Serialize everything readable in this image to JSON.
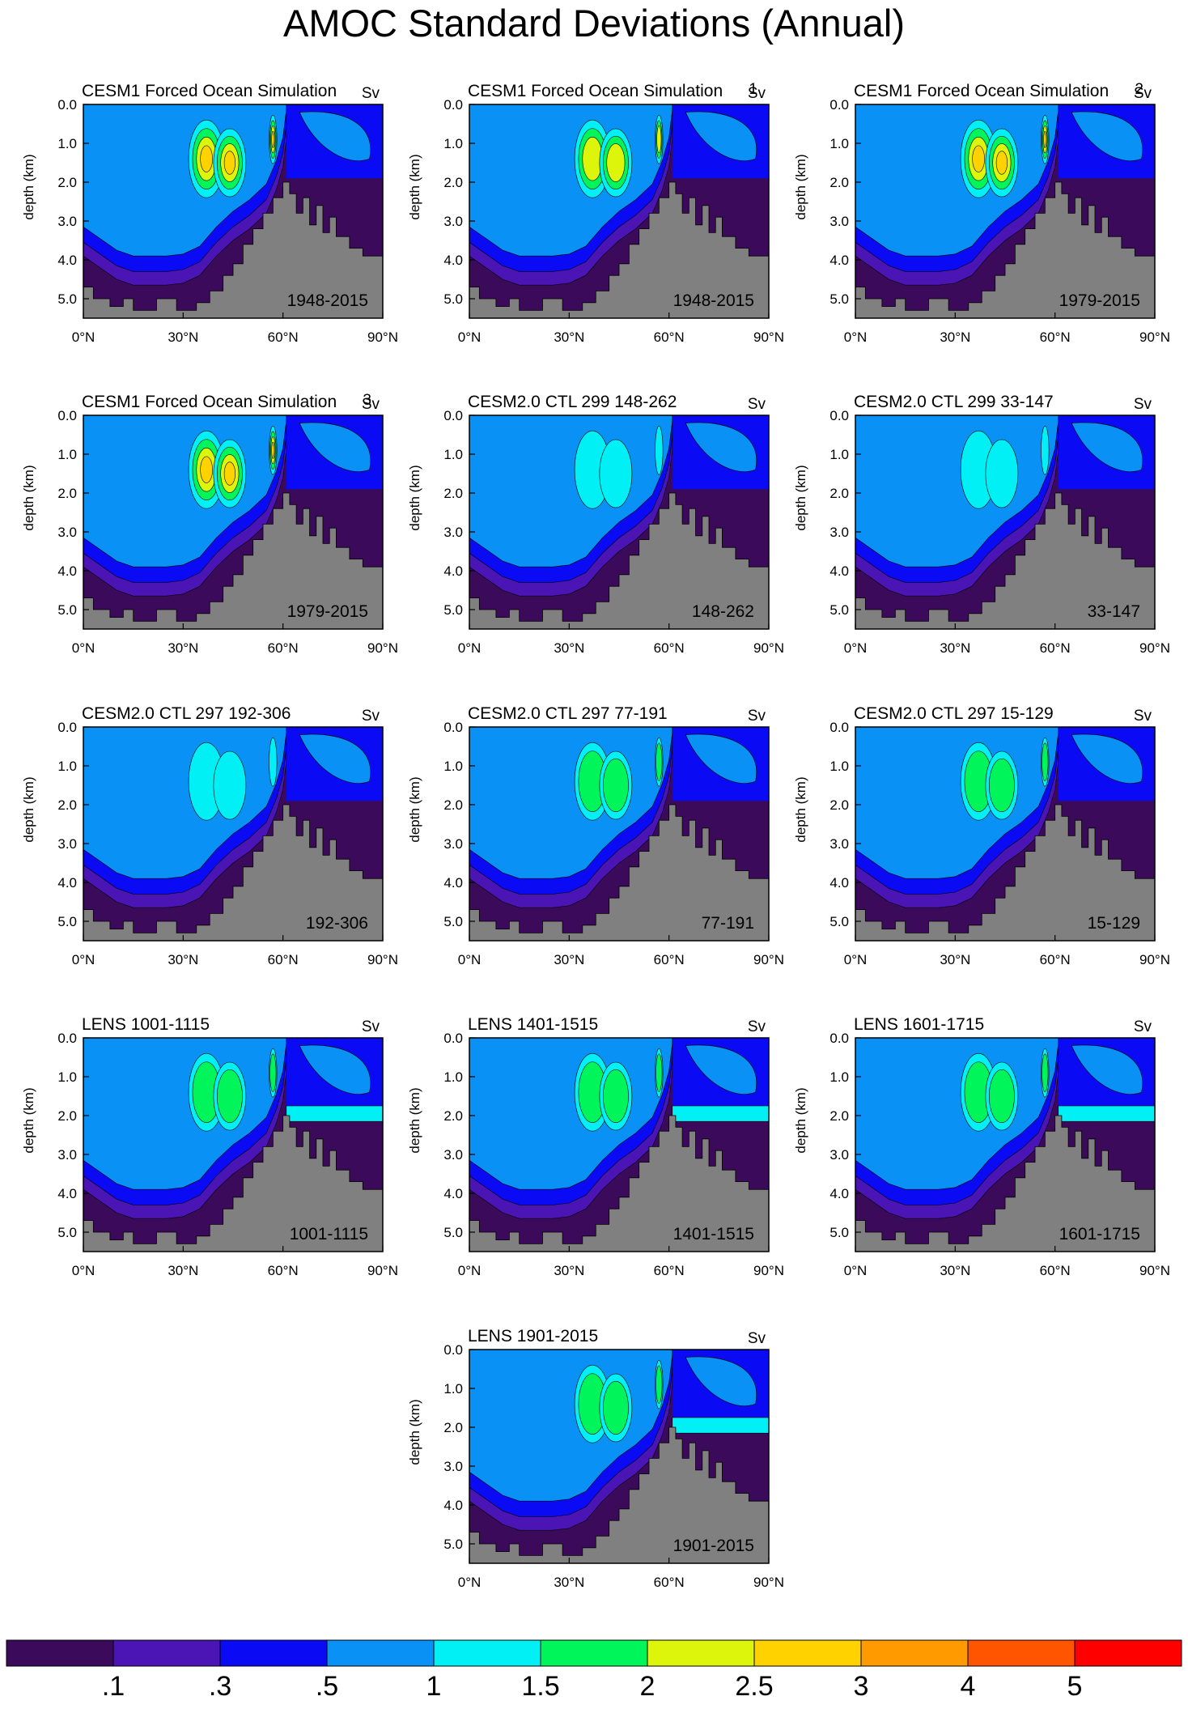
{
  "title": "AMOC Standard Deviations (Annual)",
  "colors": {
    "levels": [
      "#3c0a5a",
      "#4b14b4",
      "#0a0af5",
      "#0a91f5",
      "#00f0f5",
      "#00f55a",
      "#dcf50a",
      "#ffd200",
      "#ff9b00",
      "#ff5500",
      "#ff0000"
    ],
    "land": "#808080",
    "line": "#000000"
  },
  "chart_data": {
    "type": "heatmap",
    "title": "AMOC Standard Deviations (Annual)",
    "ylabel": "depth (km)",
    "x_ticks": [
      "0°N",
      "30°N",
      "60°N",
      "90°N"
    ],
    "y_ticks": [
      "0.0",
      "1.0",
      "2.0",
      "3.0",
      "4.0",
      "5.0"
    ],
    "xlim": [
      0,
      90
    ],
    "ylim": [
      5.5,
      0
    ],
    "units": "Sv",
    "colorbar": {
      "boundaries": [
        ".1",
        ".3",
        ".5",
        "1",
        "1.5",
        "2",
        "2.5",
        "3",
        "4",
        "5"
      ],
      "bins": [
        "<0.1",
        "0.1-0.3",
        "0.3-0.5",
        "0.5-1",
        "1-1.5",
        "1.5-2",
        "2-2.5",
        "2.5-3",
        "3-4",
        "4-5",
        ">5"
      ]
    },
    "panels": [
      {
        "name": "CESM1 Forced Ocean Simulation",
        "units": "Sv",
        "period": "1948-2015",
        "peak": "2.5-3"
      },
      {
        "name": "CESM1 Forced Ocean Simulation",
        "units": "Sv",
        "units_glyph": "1",
        "period": "1948-2015",
        "peak": "2-2.5"
      },
      {
        "name": "CESM1 Forced Ocean Simulation",
        "units": "Sv",
        "units_glyph": "2",
        "period": "1979-2015",
        "peak": "2.5-3"
      },
      {
        "name": "CESM1 Forced Ocean Simulation",
        "units": "Sv",
        "units_glyph": "3",
        "period": "1979-2015",
        "peak": "2.5-3"
      },
      {
        "name": "CESM2.0 CTL 299 148-262",
        "units": "Sv",
        "period": "148-262",
        "peak": "1-1.5"
      },
      {
        "name": "CESM2.0 CTL 299 33-147",
        "units": "Sv",
        "period": "33-147",
        "peak": "1-1.5"
      },
      {
        "name": "CESM2.0 CTL 297 192-306",
        "units": "Sv",
        "period": "192-306",
        "peak": "1-1.5"
      },
      {
        "name": "CESM2.0 CTL 297 77-191",
        "units": "Sv",
        "period": "77-191",
        "peak": "1.5-2"
      },
      {
        "name": "CESM2.0 CTL 297 15-129",
        "units": "Sv",
        "period": "15-129",
        "peak": "1.5-2"
      },
      {
        "name": "LENS 1001-1115",
        "units": "Sv",
        "period": "1001-1115",
        "peak": "1.5-2"
      },
      {
        "name": "LENS 1401-1515",
        "units": "Sv",
        "period": "1401-1515",
        "peak": "1.5-2"
      },
      {
        "name": "LENS 1601-1715",
        "units": "Sv",
        "period": "1601-1715",
        "peak": "1.5-2"
      },
      {
        "name": "LENS 1901-2015",
        "units": "Sv",
        "period": "1901-2015",
        "peak": "1.5-2"
      }
    ]
  }
}
